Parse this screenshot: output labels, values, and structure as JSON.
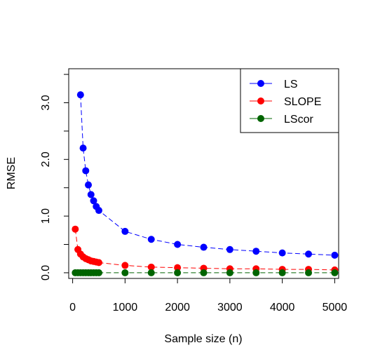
{
  "chart_data": {
    "type": "line",
    "title": "",
    "xlabel": "Sample size (n)",
    "ylabel": "RMSE",
    "xlim": [
      -75,
      5075
    ],
    "ylim": [
      -0.1,
      3.6
    ],
    "x_ticks": [
      0,
      1000,
      2000,
      3000,
      4000,
      5000
    ],
    "y_ticks": [
      0.0,
      0.5,
      1.0,
      1.5,
      2.0,
      2.5,
      3.0,
      3.5
    ],
    "y_tick_labels": [
      "0.0",
      "1.0",
      "2.0",
      "3.0"
    ],
    "y_labeled_tick_values": [
      0.0,
      1.0,
      2.0,
      3.0
    ],
    "grid": false,
    "legend_position": "top-right",
    "series": [
      {
        "name": "LS",
        "color": "#0000ff",
        "line_style": "dashed",
        "x": [
          150,
          200,
          250,
          300,
          350,
          400,
          450,
          500,
          1000,
          1500,
          2000,
          2500,
          3000,
          3500,
          4000,
          4500,
          5000
        ],
        "y": [
          3.14,
          2.2,
          1.8,
          1.55,
          1.38,
          1.27,
          1.17,
          1.1,
          0.73,
          0.59,
          0.5,
          0.45,
          0.41,
          0.38,
          0.35,
          0.33,
          0.31
        ]
      },
      {
        "name": "SLOPE",
        "color": "#ff0000",
        "line_style": "dashed",
        "x": [
          50,
          100,
          150,
          200,
          250,
          300,
          350,
          400,
          450,
          500,
          1000,
          1500,
          2000,
          2500,
          3000,
          3500,
          4000,
          4500,
          5000
        ],
        "y": [
          0.77,
          0.41,
          0.33,
          0.28,
          0.25,
          0.23,
          0.21,
          0.2,
          0.19,
          0.18,
          0.13,
          0.1,
          0.09,
          0.08,
          0.07,
          0.07,
          0.06,
          0.06,
          0.05
        ]
      },
      {
        "name": "LScor",
        "color": "#006400",
        "line_style": "dashed",
        "x": [
          50,
          100,
          150,
          200,
          250,
          300,
          350,
          400,
          450,
          500,
          1000,
          1500,
          2000,
          2500,
          3000,
          3500,
          4000,
          4500,
          5000
        ],
        "y": [
          0.0,
          0.0,
          0.0,
          0.0,
          0.0,
          0.0,
          0.0,
          0.0,
          0.0,
          0.0,
          0.0,
          0.0,
          0.0,
          0.0,
          0.0,
          0.0,
          0.0,
          0.0,
          0.0
        ]
      }
    ]
  }
}
